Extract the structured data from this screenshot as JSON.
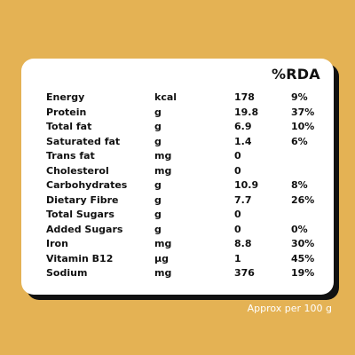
{
  "table": {
    "rda_header": "%RDA",
    "rows": [
      {
        "name": "Energy",
        "unit": "kcal",
        "value": "178",
        "rda": "9%"
      },
      {
        "name": "Protein",
        "unit": "g",
        "value": "19.8",
        "rda": "37%"
      },
      {
        "name": "Total fat",
        "unit": "g",
        "value": "6.9",
        "rda": "10%"
      },
      {
        "name": "Saturated fat",
        "unit": "g",
        "value": "1.4",
        "rda": "6%"
      },
      {
        "name": "Trans fat",
        "unit": "mg",
        "value": "0",
        "rda": ""
      },
      {
        "name": "Cholesterol",
        "unit": "mg",
        "value": "0",
        "rda": ""
      },
      {
        "name": "Carbohydrates",
        "unit": "g",
        "value": "10.9",
        "rda": "8%"
      },
      {
        "name": "Dietary Fibre",
        "unit": "g",
        "value": "7.7",
        "rda": "26%"
      },
      {
        "name": "Total Sugars",
        "unit": "g",
        "value": "0",
        "rda": ""
      },
      {
        "name": "Added Sugars",
        "unit": "g",
        "value": "0",
        "rda": "0%"
      },
      {
        "name": "Iron",
        "unit": "mg",
        "value": "8.8",
        "rda": "30%"
      },
      {
        "name": "Vitamin B12",
        "unit": "µg",
        "value": "1",
        "rda": "45%"
      },
      {
        "name": "Sodium",
        "unit": "mg",
        "value": "376",
        "rda": "19%"
      }
    ]
  },
  "footer": "Approx per 100 g",
  "colors": {
    "background": "#e4b254",
    "card": "#ffffff",
    "shadow": "#111111"
  }
}
